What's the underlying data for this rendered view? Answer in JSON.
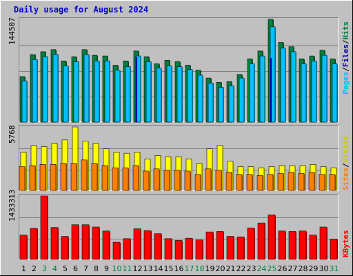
{
  "chart_data": [
    {
      "type": "bar",
      "title": "Daily usage for August 2024",
      "ymax_label": "144507",
      "legend": [
        "Pages",
        "Files",
        "Hits"
      ],
      "categories": [
        "1",
        "2",
        "3",
        "4",
        "5",
        "6",
        "7",
        "8",
        "9",
        "10",
        "11",
        "12",
        "13",
        "14",
        "15",
        "16",
        "17",
        "18",
        "19",
        "20",
        "21",
        "22",
        "23",
        "24",
        "25",
        "26",
        "27",
        "28",
        "29",
        "30",
        "31"
      ],
      "weekend_days": [
        "3",
        "4",
        "10",
        "11",
        "17",
        "18",
        "24",
        "25",
        "31"
      ],
      "colors": {
        "hits": "#008040",
        "files": "#00c0ff",
        "pages": "#0000a0"
      },
      "series": [
        {
          "name": "Hits",
          "values": [
            64000,
            95000,
            99000,
            102000,
            86000,
            92000,
            102000,
            94000,
            93000,
            80000,
            86000,
            100000,
            92000,
            82000,
            87000,
            85000,
            80000,
            73000,
            62000,
            56000,
            57000,
            67000,
            89000,
            100000,
            144507,
            112000,
            106000,
            89000,
            93000,
            101000,
            89000
          ]
        },
        {
          "name": "Files",
          "values": [
            58000,
            88000,
            92000,
            95000,
            79000,
            85000,
            95000,
            86000,
            86000,
            73000,
            78000,
            93000,
            85000,
            76000,
            79000,
            78000,
            74000,
            66000,
            55000,
            49000,
            51000,
            62000,
            82000,
            93000,
            134000,
            104000,
            99000,
            82000,
            86000,
            94000,
            82000
          ]
        },
        {
          "name": "Pages",
          "values": [
            6000,
            7000,
            6000,
            6500,
            5500,
            6000,
            6800,
            6200,
            6100,
            5000,
            5500,
            91000,
            6000,
            5200,
            5600,
            5400,
            5100,
            4600,
            3800,
            3400,
            3500,
            4200,
            5700,
            6200,
            90000,
            7200,
            6800,
            5800,
            6000,
            6500,
            5800
          ]
        }
      ]
    },
    {
      "type": "bar",
      "ymax_label": "5768",
      "legend": [
        "Sites",
        "Visits"
      ],
      "categories": [
        "1",
        "2",
        "3",
        "4",
        "5",
        "6",
        "7",
        "8",
        "9",
        "10",
        "11",
        "12",
        "13",
        "14",
        "15",
        "16",
        "17",
        "18",
        "19",
        "20",
        "21",
        "22",
        "23",
        "24",
        "25",
        "26",
        "27",
        "28",
        "29",
        "30",
        "31"
      ],
      "colors": {
        "visits": "#ffff00",
        "sites": "#ff8000"
      },
      "series": [
        {
          "name": "Visits",
          "values": [
            3500,
            4100,
            4000,
            4300,
            4600,
            5768,
            4500,
            4300,
            3800,
            3500,
            3400,
            3500,
            2900,
            3200,
            3100,
            3100,
            2900,
            2500,
            3800,
            4100,
            2700,
            2200,
            2200,
            2100,
            2200,
            2300,
            2300,
            2300,
            2400,
            2200,
            2100
          ]
        },
        {
          "name": "Sites",
          "values": [
            2200,
            2300,
            2400,
            2400,
            2500,
            2500,
            2800,
            2500,
            2300,
            2100,
            2100,
            2300,
            1800,
            2000,
            1900,
            1900,
            1800,
            1500,
            2000,
            1900,
            1700,
            1500,
            1500,
            1400,
            1500,
            1600,
            1700,
            1600,
            1700,
            1500,
            1500
          ]
        }
      ]
    },
    {
      "type": "bar",
      "ymax_label": "1433313",
      "legend": [
        "KBytes"
      ],
      "categories": [
        "1",
        "2",
        "3",
        "4",
        "5",
        "6",
        "7",
        "8",
        "9",
        "10",
        "11",
        "12",
        "13",
        "14",
        "15",
        "16",
        "17",
        "18",
        "19",
        "20",
        "21",
        "22",
        "23",
        "24",
        "25",
        "26",
        "27",
        "28",
        "29",
        "30",
        "31"
      ],
      "colors": {
        "kbytes": "#ff0000"
      },
      "series": [
        {
          "name": "KBytes",
          "values": [
            560000,
            710000,
            1433313,
            730000,
            530000,
            790000,
            790000,
            740000,
            650000,
            400000,
            480000,
            700000,
            660000,
            590000,
            480000,
            440000,
            490000,
            450000,
            630000,
            640000,
            530000,
            520000,
            720000,
            830000,
            1010000,
            650000,
            640000,
            650000,
            560000,
            740000,
            470000
          ]
        }
      ]
    }
  ]
}
